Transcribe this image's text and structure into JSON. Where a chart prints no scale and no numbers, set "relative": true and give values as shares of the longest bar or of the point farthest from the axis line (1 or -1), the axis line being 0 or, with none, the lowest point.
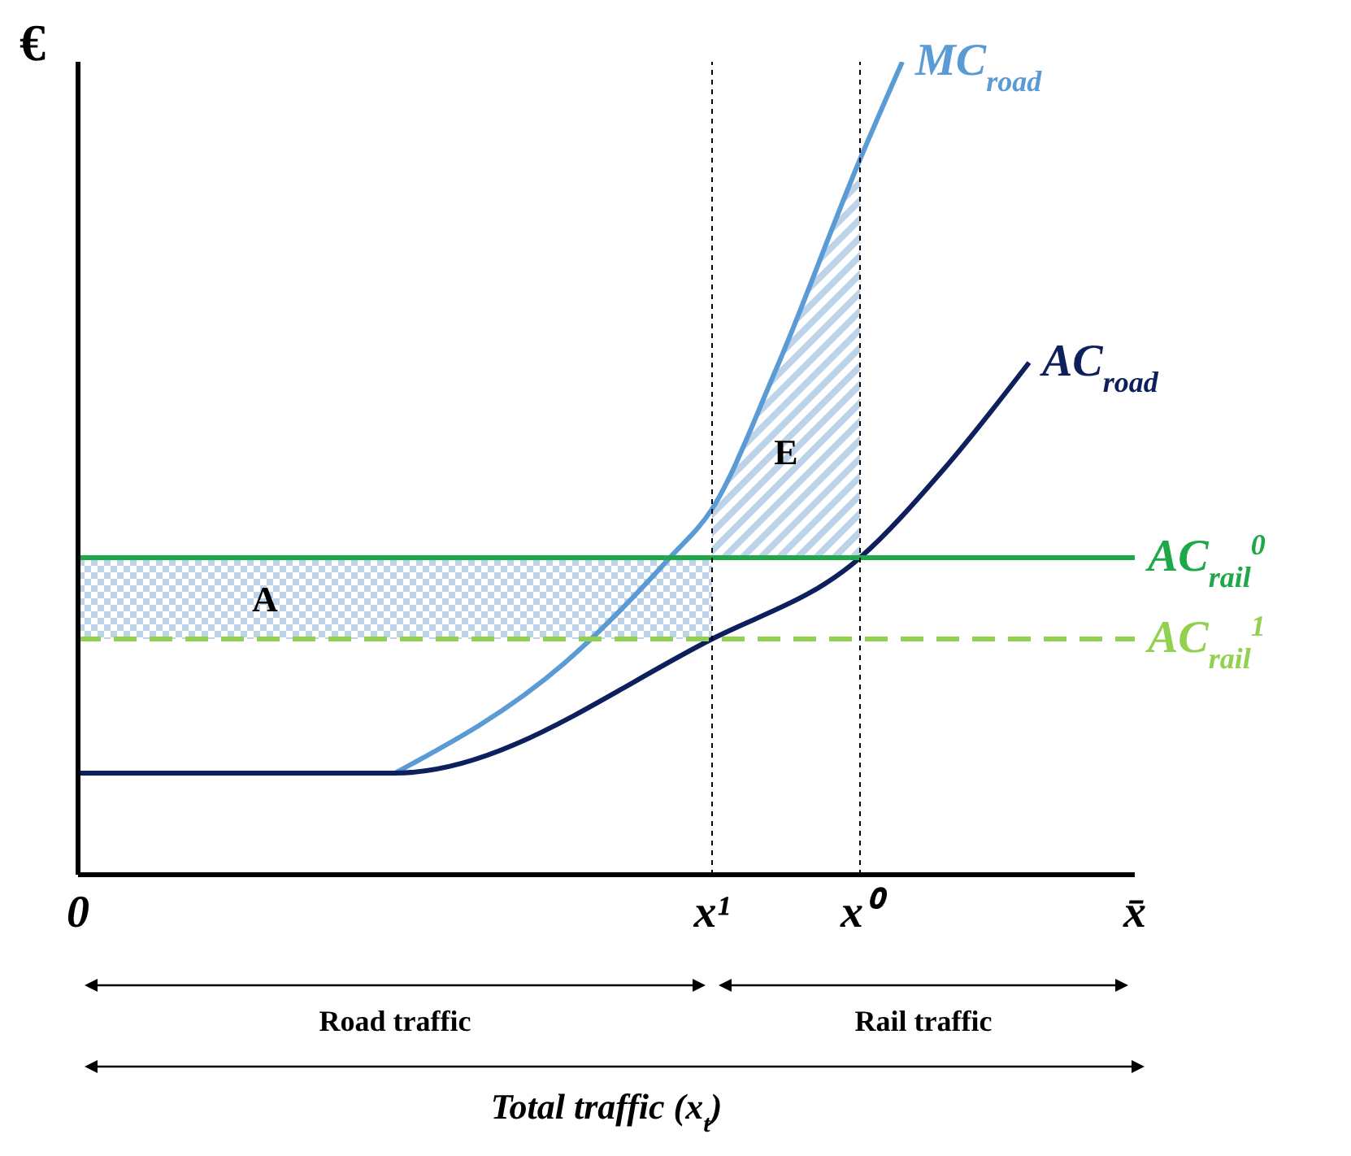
{
  "chart_data": {
    "type": "line",
    "relative": true,
    "ylabel": "€",
    "xlabel": "Total traffic (x$_{t}$)",
    "categories": [
      "0",
      null,
      null,
      null,
      null,
      null,
      null,
      null,
      null,
      null,
      null,
      null,
      null,
      null,
      null,
      null,
      null,
      null,
      null,
      null,
      null,
      null,
      null,
      null,
      null,
      null,
      null,
      null,
      null,
      null,
      "x¹",
      null,
      null,
      null,
      null,
      null,
      null,
      "x⁰",
      null,
      null,
      null,
      null,
      null,
      null,
      null,
      null,
      null,
      null,
      null,
      null,
      "x̄"
    ],
    "series": [
      {
        "name": "MC$_{road}$",
        "color": "#5b9bd5",
        "values": [
          null,
          null,
          null,
          null,
          null,
          null,
          null,
          null,
          null,
          null,
          null,
          null,
          null,
          null,
          null,
          0.125,
          null,
          null,
          null,
          null,
          null,
          null,
          null,
          0.26,
          null,
          null,
          null,
          null,
          0.39,
          null,
          0.45,
          null,
          null,
          0.62,
          null,
          null,
          null,
          0.88,
          null,
          1.0,
          null,
          null,
          null,
          null,
          null,
          null,
          null,
          null,
          null,
          null,
          null
        ]
      },
      {
        "name": "AC$_{road}$",
        "color": "#0d1f5c",
        "values": [
          0.125,
          null,
          null,
          null,
          null,
          null,
          null,
          null,
          null,
          null,
          null,
          null,
          null,
          null,
          null,
          0.125,
          null,
          null,
          null,
          null,
          null,
          null,
          null,
          null,
          null,
          null,
          null,
          null,
          null,
          null,
          0.29,
          null,
          null,
          null,
          null,
          null,
          null,
          0.39,
          null,
          null,
          null,
          0.5,
          null,
          null,
          null,
          0.63,
          null,
          null,
          null,
          null,
          null
        ]
      },
      {
        "name": "AC$_{rail}$$^{0}$",
        "color": "#1fa84a",
        "values": [
          0.39,
          null,
          null,
          null,
          null,
          null,
          null,
          null,
          null,
          null,
          null,
          null,
          null,
          null,
          null,
          null,
          null,
          null,
          null,
          null,
          null,
          null,
          null,
          null,
          null,
          null,
          null,
          null,
          null,
          null,
          null,
          null,
          null,
          null,
          null,
          null,
          null,
          null,
          null,
          null,
          null,
          null,
          null,
          null,
          null,
          null,
          null,
          null,
          null,
          null,
          0.39
        ]
      },
      {
        "name": "AC$_{rail}$$^{1}$",
        "color": "#92d050",
        "line_style": "dashed",
        "values": [
          0.29,
          null,
          null,
          null,
          null,
          null,
          null,
          null,
          null,
          null,
          null,
          null,
          null,
          null,
          null,
          null,
          null,
          null,
          null,
          null,
          null,
          null,
          null,
          null,
          null,
          null,
          null,
          null,
          null,
          null,
          null,
          null,
          null,
          null,
          null,
          null,
          null,
          null,
          null,
          null,
          null,
          null,
          null,
          null,
          null,
          null,
          null,
          null,
          null,
          null,
          0.29
        ]
      }
    ],
    "ref_lines": [
      {
        "axis": "x",
        "value": "x¹",
        "color": "#000000",
        "line_style": "dotted"
      },
      {
        "axis": "x",
        "value": "x⁰",
        "color": "#000000",
        "line_style": "dotted"
      }
    ],
    "annotations": [
      "Road traffic",
      "Rail traffic",
      "A",
      "E"
    ],
    "marker": "none"
  }
}
